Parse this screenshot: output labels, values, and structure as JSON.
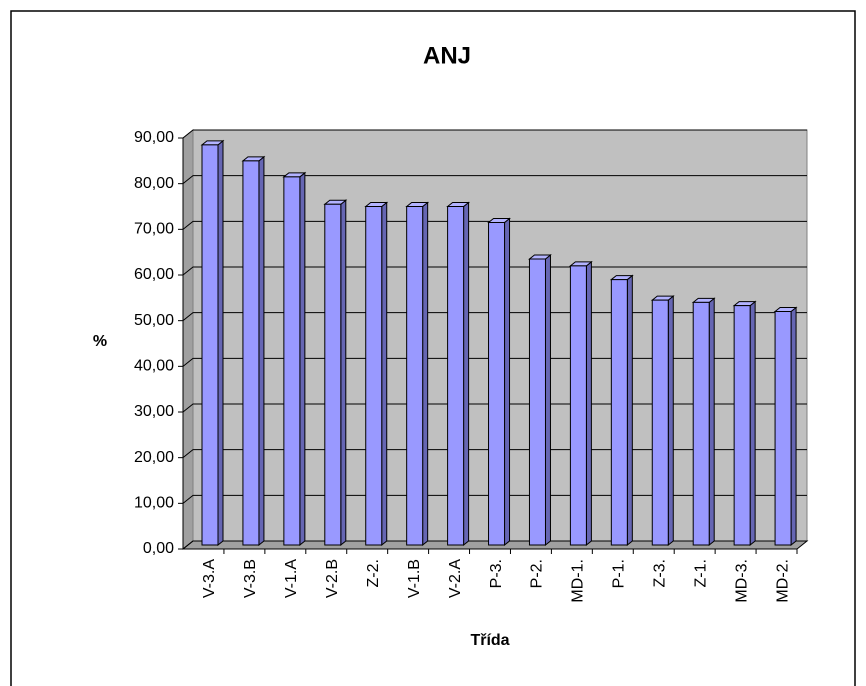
{
  "chart_data": {
    "type": "bar3d",
    "title": "ANJ",
    "categories": [
      "V-3.A",
      "V-3.B",
      "V-1.A",
      "V-2.B",
      "Z-2.",
      "V-1.B",
      "V-2.A",
      "P-3.",
      "P-2.",
      "MD-1.",
      "P-1.",
      "Z-3.",
      "Z-1.",
      "MD-3.",
      "MD-2."
    ],
    "values": [
      88.5,
      85,
      81.5,
      75.5,
      75,
      75,
      75,
      71.5,
      63.5,
      62,
      59,
      54.5,
      54,
      53.3,
      52
    ],
    "color": "#9999ff",
    "ylim": [
      0,
      90
    ],
    "yticks": [
      {
        "value": 0,
        "label": "0,00"
      },
      {
        "value": 10,
        "label": "10,00"
      },
      {
        "value": 20,
        "label": "20,00"
      },
      {
        "value": 30,
        "label": "30,00"
      },
      {
        "value": 40,
        "label": "40,00"
      },
      {
        "value": 50,
        "label": "50,00"
      },
      {
        "value": 60,
        "label": "60,00"
      },
      {
        "value": 70,
        "label": "70,00"
      },
      {
        "value": 80,
        "label": "80,00"
      },
      {
        "value": 90,
        "label": "90,00"
      }
    ],
    "ylabel": "%",
    "xlabel": "Třída",
    "grid": true
  }
}
